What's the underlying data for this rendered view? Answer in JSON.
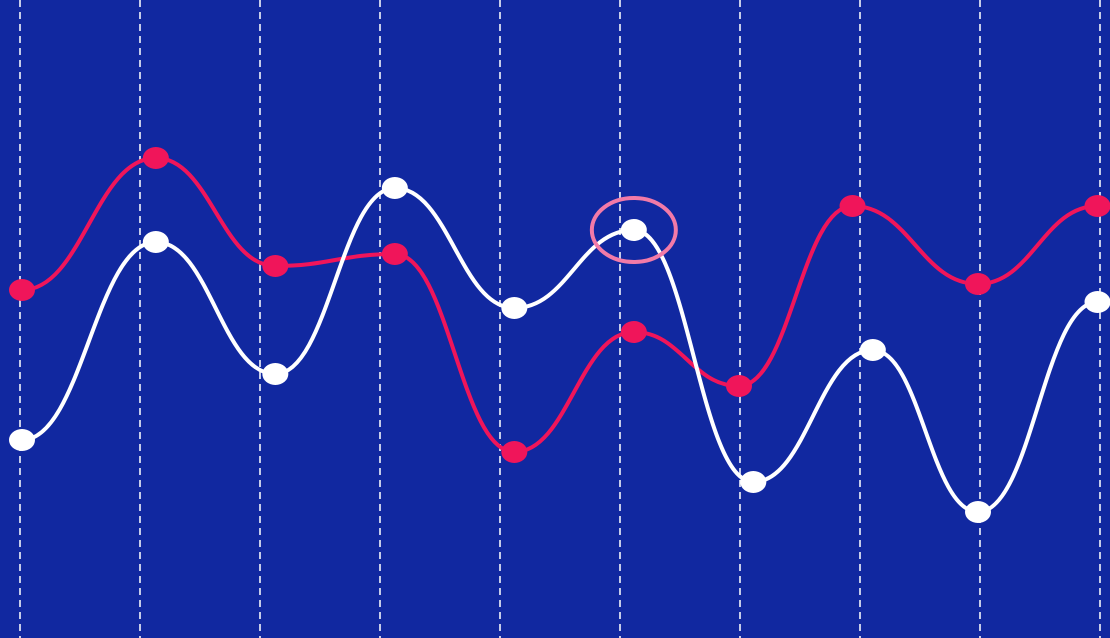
{
  "colors": {
    "background": "#1128a0",
    "grid": "#ffffff",
    "series_pink": "#f0155a",
    "series_white": "#ffffff",
    "highlight_ring": "#f27aa8"
  },
  "chart_data": {
    "type": "line",
    "title": "",
    "xlabel": "",
    "ylabel": "",
    "x": [
      0,
      1,
      2,
      3,
      4,
      5,
      6,
      7,
      8,
      9
    ],
    "ylim": [
      0,
      100
    ],
    "xlim": [
      0,
      9
    ],
    "grid": {
      "vertical": "dashed",
      "horizontal": false
    },
    "legend": "none",
    "smooth": true,
    "series": [
      {
        "color": "#f0155a",
        "values": [
          55,
          77,
          59,
          61,
          28,
          48,
          39,
          69,
          56,
          69
        ],
        "x_offsets": [
          0,
          0.12,
          0.12,
          0.12,
          0.12,
          0.12,
          0.0,
          -0.05,
          0,
          0
        ]
      },
      {
        "color": "#ffffff",
        "values": [
          30,
          63,
          41,
          72,
          52,
          65,
          23,
          45,
          18,
          53
        ],
        "x_offsets": [
          0,
          0.12,
          0.12,
          0.12,
          0.12,
          0.12,
          0.12,
          0.12,
          0,
          0
        ]
      }
    ],
    "highlight": {
      "series": 1,
      "index": 5
    }
  }
}
